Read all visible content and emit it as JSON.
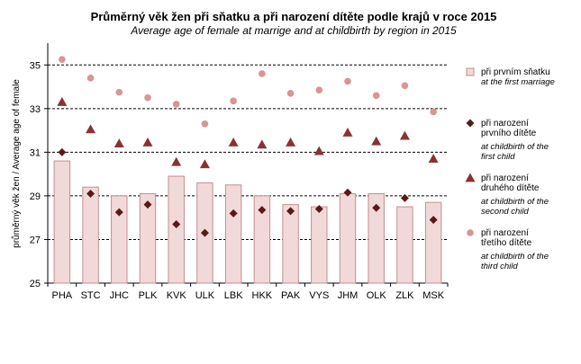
{
  "chart_data": {
    "type": "bar",
    "title": "Průměrný věk žen při sňatku a při narození dítěte podle krajů v roce 2015",
    "subtitle": "Average age of female at marrige and at childbirth by region in 2015",
    "ylabel": "průměrný věk žen / Average age of female",
    "ylim": [
      25,
      36
    ],
    "yticks": [
      25,
      27,
      29,
      31,
      33,
      35
    ],
    "grid": true,
    "legend_position": "right",
    "categories": [
      "PHA",
      "STC",
      "JHC",
      "PLK",
      "KVK",
      "ULK",
      "LBK",
      "HKK",
      "PAK",
      "VYS",
      "JHM",
      "OLK",
      "ZLK",
      "MSK"
    ],
    "series": [
      {
        "name": "při prvním sňatku",
        "name_en": "at the first marriage",
        "kind": "bar",
        "color": "#f2d9d9",
        "stroke": "#c08f8f",
        "values": [
          30.6,
          29.4,
          29.0,
          29.1,
          29.9,
          29.6,
          29.5,
          29.0,
          28.6,
          28.5,
          29.1,
          29.1,
          28.5,
          28.7
        ]
      },
      {
        "name": "při narození prvního dítěte",
        "name_en": "at childbirth of the first child",
        "kind": "diamond",
        "color": "#5a1a1a",
        "values": [
          31.0,
          29.1,
          28.25,
          28.6,
          27.7,
          27.3,
          28.2,
          28.35,
          28.3,
          28.4,
          29.15,
          28.45,
          28.9,
          27.9
        ]
      },
      {
        "name": "při narození druhého dítěte",
        "name_en": "at childbirth of the second child",
        "kind": "triangle",
        "color": "#8a3232",
        "values": [
          33.3,
          32.05,
          31.4,
          31.45,
          30.55,
          30.45,
          31.45,
          31.35,
          31.45,
          31.05,
          31.9,
          31.5,
          31.75,
          30.7
        ]
      },
      {
        "name": "při narození třetího dítěte",
        "name_en": "at childbirth of the third child",
        "kind": "circle",
        "color": "#d99494",
        "values": [
          35.25,
          34.4,
          33.75,
          33.5,
          33.2,
          32.3,
          33.35,
          34.6,
          33.7,
          33.85,
          34.25,
          33.6,
          34.05,
          32.85
        ]
      }
    ]
  }
}
